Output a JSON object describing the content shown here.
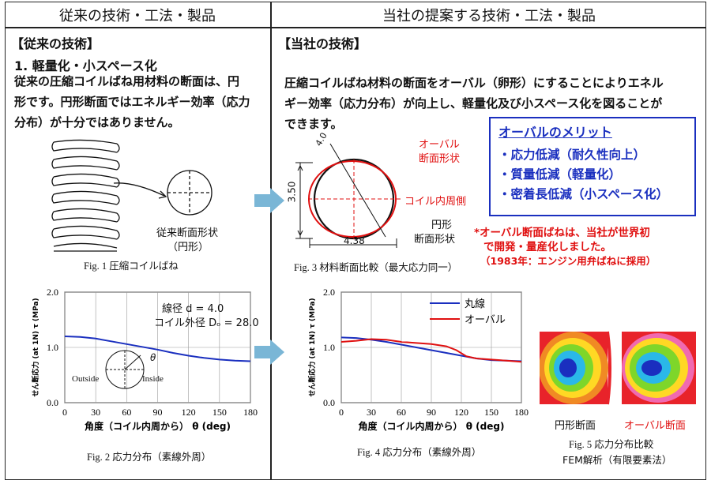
{
  "headers": {
    "left": "従来の技術・工法・製品",
    "right": "当社の提案する技術・工法・製品"
  },
  "left": {
    "section": "【従来の技術】",
    "sub": "1. 軽量化・小スペース化",
    "body": [
      "従来の圧縮コイルばね用材料の断面は、円",
      "形です。円形断面ではエネルギー効率（応力",
      "分布）が十分ではありません。"
    ],
    "fig1_label1": "従来断面形状",
    "fig1_label2": "（円形）",
    "fig1_caption": "Fig. 1  圧縮コイルばね",
    "fig2_legend1": "線径  d = 4.0",
    "fig2_legend2": "コイル外径  Dₒ = 28.0",
    "fig2_outside": "Outside",
    "fig2_inside": "Inside",
    "fig2_theta": "θ",
    "fig2_caption": "Fig. 2  応力分布（素線外周）"
  },
  "right": {
    "section": "【当社の技術】",
    "body": [
      "圧縮コイルばね材料の断面をオーバル（卵形）にすることによりエネル",
      "ギー効率（応力分布）が向上し、軽量化及び小スペース化を図ることが",
      "できます。"
    ],
    "merit": {
      "title": "オーバルのメリット",
      "items": [
        "・応力低減（耐久性向上）",
        "・質量低減（軽量化）",
        "・密着長低減（小スペース化）"
      ]
    },
    "fig3": {
      "dim_top": "4.0",
      "dim_left": "3.50",
      "dim_bottom": "4.38",
      "oval_label1": "オーバル",
      "oval_label2": "断面形状",
      "inner": "コイル内周側",
      "circ_label1": "円形",
      "circ_label2": "断面形状",
      "caption": "Fig. 3  材料断面比較（最大応力同一）"
    },
    "note": [
      "*オーバル断面ばねは、当社が世界初",
      "で開発・量産化しました。",
      "（1983年：エンジン用弁ばねに採用）"
    ],
    "fig4_caption": "Fig. 4  応力分布（素線外周）",
    "fig5": {
      "label_circle": "円形断面",
      "label_oval": "オーバル断面",
      "caption1": "Fig. 5  応力分布比較",
      "caption2": "FEM解析（有限要素法）"
    }
  },
  "chart_data": [
    {
      "type": "line",
      "title": "",
      "xlabel": "角度（コイル内周から） θ (deg)",
      "ylabel": "せん断応力 (at 1N) τ (MPa)",
      "xlim": [
        0,
        180
      ],
      "ylim": [
        0,
        2.0
      ],
      "xticks": [
        0,
        30,
        60,
        90,
        120,
        150,
        180
      ],
      "yticks": [
        "0.0",
        "1.0",
        "2.0"
      ],
      "series": [
        {
          "color": "#1a2fbf",
          "x": [
            0,
            15,
            30,
            45,
            60,
            75,
            90,
            105,
            120,
            135,
            150,
            165,
            180
          ],
          "y": [
            1.2,
            1.19,
            1.16,
            1.11,
            1.06,
            1.01,
            0.96,
            0.9,
            0.85,
            0.81,
            0.78,
            0.76,
            0.75
          ]
        }
      ]
    },
    {
      "type": "line",
      "title": "",
      "xlabel": "角度（コイル内周から） θ (deg)",
      "ylabel": "せん断応力 (at 1N) τ (MPa)",
      "xlim": [
        0,
        180
      ],
      "ylim": [
        0,
        2.0
      ],
      "xticks": [
        0,
        30,
        60,
        90,
        120,
        150,
        180
      ],
      "yticks": [
        "0.0",
        "1.0",
        "2.0"
      ],
      "series": [
        {
          "name": "丸線",
          "color": "#1a2fbf",
          "x": [
            0,
            15,
            30,
            45,
            60,
            75,
            90,
            105,
            120,
            135,
            150,
            165,
            180
          ],
          "y": [
            1.18,
            1.17,
            1.14,
            1.1,
            1.05,
            1.0,
            0.95,
            0.9,
            0.85,
            0.8,
            0.77,
            0.76,
            0.75
          ]
        },
        {
          "name": "オーバル",
          "color": "#e01010",
          "x": [
            0,
            15,
            30,
            45,
            60,
            75,
            90,
            105,
            115,
            125,
            135,
            150,
            165,
            180
          ],
          "y": [
            1.1,
            1.12,
            1.15,
            1.14,
            1.1,
            1.08,
            1.06,
            1.02,
            0.95,
            0.84,
            0.8,
            0.78,
            0.76,
            0.74
          ]
        }
      ]
    }
  ]
}
